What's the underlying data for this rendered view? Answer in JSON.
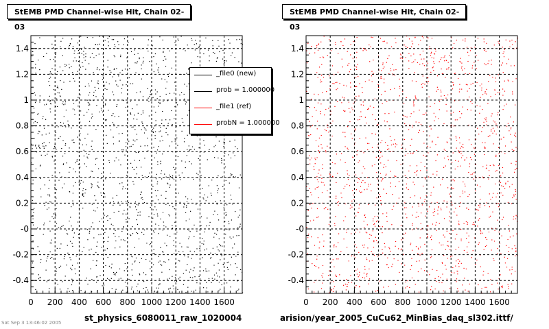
{
  "left_panel": {
    "title": "StEMB PMD Channel-wise Hit, Chain 02-03",
    "caption": "st_physics_6080011_raw_1020004",
    "marker_color": "#000000"
  },
  "right_panel": {
    "title": "StEMB PMD Channel-wise Hit, Chain 02-03",
    "caption": "arision/year_2005_CuCu62_MinBias_daq_sl302.ittf/",
    "marker_color": "#ff0000"
  },
  "legend": {
    "entries": [
      {
        "label": "_file0 (new)",
        "color": "#000000"
      },
      {
        "label": "prob = 1.000000",
        "color": "#000000"
      },
      {
        "label": "_file1 (ref)",
        "color": "#ff0000"
      },
      {
        "label": "probN = 1.000000",
        "color": "#ff0000"
      }
    ]
  },
  "corner_note": "Sat Sep 3 13:46:02 2005",
  "chart_data": [
    {
      "type": "scatter",
      "title": "StEMB PMD Channel-wise Hit, Chain 02-03",
      "xlim": [
        0,
        1750
      ],
      "ylim": [
        -0.5,
        1.5
      ],
      "xticks": [
        0,
        200,
        400,
        600,
        800,
        1000,
        1200,
        1400,
        1600
      ],
      "xtick_labels": [
        "0",
        "200",
        "400",
        "600",
        "800",
        "1000",
        "1200",
        "1400",
        "1600"
      ],
      "yticks": [
        -0.4,
        -0.2,
        0,
        0.2,
        0.4,
        0.6,
        0.8,
        1.0,
        1.2,
        1.4
      ],
      "ytick_labels": [
        "-0.4",
        "-0.2",
        "-0",
        "0.2",
        "0.4",
        "0.6",
        "0.8",
        "1",
        "1.2",
        "1.4"
      ],
      "grid": true,
      "series": [
        {
          "name": "_file0 (new)",
          "color": "#000000"
        }
      ]
    },
    {
      "type": "scatter",
      "title": "StEMB PMD Channel-wise Hit, Chain 02-03",
      "xlim": [
        0,
        1750
      ],
      "ylim": [
        -0.5,
        1.5
      ],
      "xticks": [
        0,
        200,
        400,
        600,
        800,
        1000,
        1200,
        1400,
        1600
      ],
      "xtick_labels": [
        "0",
        "200",
        "400",
        "600",
        "800",
        "1000",
        "1200",
        "1400",
        "1600"
      ],
      "yticks": [
        -0.4,
        -0.2,
        0,
        0.2,
        0.4,
        0.6,
        0.8,
        1.0,
        1.2,
        1.4
      ],
      "ytick_labels": [
        "-0.4",
        "-0.2",
        "-0",
        "0.2",
        "0.4",
        "0.6",
        "0.8",
        "1",
        "1.2",
        "1.4"
      ],
      "grid": true,
      "series": [
        {
          "name": "_file1 (ref)",
          "color": "#ff0000"
        }
      ]
    }
  ]
}
